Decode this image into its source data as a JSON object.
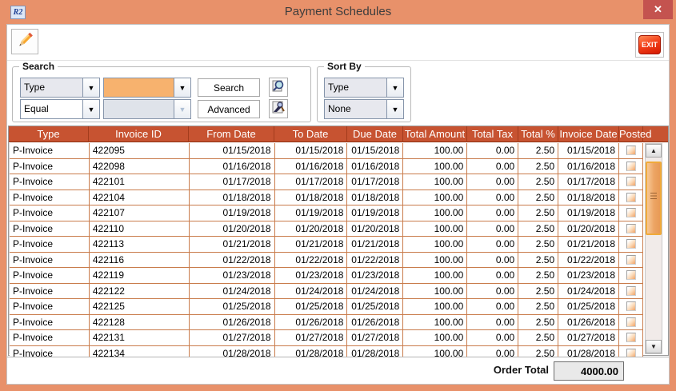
{
  "window": {
    "title": "Payment Schedules",
    "app_icon": "R2"
  },
  "icons": {
    "close": "✕",
    "dropdown": "▼",
    "scroll_up": "▲",
    "scroll_down": "▼"
  },
  "toolbar": {
    "exit_label": "EXIT"
  },
  "search": {
    "group_label": "Search",
    "field_selector": "Type",
    "operator_selector": "Equal",
    "value_input": "",
    "value2_input": "",
    "search_button": "Search",
    "advanced_button": "Advanced"
  },
  "sort": {
    "group_label": "Sort By",
    "primary": "Type",
    "secondary": "None"
  },
  "table": {
    "columns": [
      {
        "key": "type",
        "label": "Type"
      },
      {
        "key": "invoice_id",
        "label": "Invoice ID"
      },
      {
        "key": "from_date",
        "label": "From Date"
      },
      {
        "key": "to_date",
        "label": "To Date"
      },
      {
        "key": "due_date",
        "label": "Due Date"
      },
      {
        "key": "total_amount",
        "label": "Total Amount"
      },
      {
        "key": "total_tax",
        "label": "Total Tax"
      },
      {
        "key": "total_pct",
        "label": "Total %"
      },
      {
        "key": "invoice_date",
        "label": "Invoice Date"
      },
      {
        "key": "posted",
        "label": "Posted"
      }
    ],
    "rows": [
      {
        "type": "P-Invoice",
        "invoice_id": "422095",
        "from_date": "01/15/2018",
        "to_date": "01/15/2018",
        "due_date": "01/15/2018",
        "total_amount": "100.00",
        "total_tax": "0.00",
        "total_pct": "2.50",
        "invoice_date": "01/15/2018",
        "posted": false
      },
      {
        "type": "P-Invoice",
        "invoice_id": "422098",
        "from_date": "01/16/2018",
        "to_date": "01/16/2018",
        "due_date": "01/16/2018",
        "total_amount": "100.00",
        "total_tax": "0.00",
        "total_pct": "2.50",
        "invoice_date": "01/16/2018",
        "posted": false
      },
      {
        "type": "P-Invoice",
        "invoice_id": "422101",
        "from_date": "01/17/2018",
        "to_date": "01/17/2018",
        "due_date": "01/17/2018",
        "total_amount": "100.00",
        "total_tax": "0.00",
        "total_pct": "2.50",
        "invoice_date": "01/17/2018",
        "posted": false
      },
      {
        "type": "P-Invoice",
        "invoice_id": "422104",
        "from_date": "01/18/2018",
        "to_date": "01/18/2018",
        "due_date": "01/18/2018",
        "total_amount": "100.00",
        "total_tax": "0.00",
        "total_pct": "2.50",
        "invoice_date": "01/18/2018",
        "posted": false
      },
      {
        "type": "P-Invoice",
        "invoice_id": "422107",
        "from_date": "01/19/2018",
        "to_date": "01/19/2018",
        "due_date": "01/19/2018",
        "total_amount": "100.00",
        "total_tax": "0.00",
        "total_pct": "2.50",
        "invoice_date": "01/19/2018",
        "posted": false
      },
      {
        "type": "P-Invoice",
        "invoice_id": "422110",
        "from_date": "01/20/2018",
        "to_date": "01/20/2018",
        "due_date": "01/20/2018",
        "total_amount": "100.00",
        "total_tax": "0.00",
        "total_pct": "2.50",
        "invoice_date": "01/20/2018",
        "posted": false
      },
      {
        "type": "P-Invoice",
        "invoice_id": "422113",
        "from_date": "01/21/2018",
        "to_date": "01/21/2018",
        "due_date": "01/21/2018",
        "total_amount": "100.00",
        "total_tax": "0.00",
        "total_pct": "2.50",
        "invoice_date": "01/21/2018",
        "posted": false
      },
      {
        "type": "P-Invoice",
        "invoice_id": "422116",
        "from_date": "01/22/2018",
        "to_date": "01/22/2018",
        "due_date": "01/22/2018",
        "total_amount": "100.00",
        "total_tax": "0.00",
        "total_pct": "2.50",
        "invoice_date": "01/22/2018",
        "posted": false
      },
      {
        "type": "P-Invoice",
        "invoice_id": "422119",
        "from_date": "01/23/2018",
        "to_date": "01/23/2018",
        "due_date": "01/23/2018",
        "total_amount": "100.00",
        "total_tax": "0.00",
        "total_pct": "2.50",
        "invoice_date": "01/23/2018",
        "posted": false
      },
      {
        "type": "P-Invoice",
        "invoice_id": "422122",
        "from_date": "01/24/2018",
        "to_date": "01/24/2018",
        "due_date": "01/24/2018",
        "total_amount": "100.00",
        "total_tax": "0.00",
        "total_pct": "2.50",
        "invoice_date": "01/24/2018",
        "posted": false
      },
      {
        "type": "P-Invoice",
        "invoice_id": "422125",
        "from_date": "01/25/2018",
        "to_date": "01/25/2018",
        "due_date": "01/25/2018",
        "total_amount": "100.00",
        "total_tax": "0.00",
        "total_pct": "2.50",
        "invoice_date": "01/25/2018",
        "posted": false
      },
      {
        "type": "P-Invoice",
        "invoice_id": "422128",
        "from_date": "01/26/2018",
        "to_date": "01/26/2018",
        "due_date": "01/26/2018",
        "total_amount": "100.00",
        "total_tax": "0.00",
        "total_pct": "2.50",
        "invoice_date": "01/26/2018",
        "posted": false
      },
      {
        "type": "P-Invoice",
        "invoice_id": "422131",
        "from_date": "01/27/2018",
        "to_date": "01/27/2018",
        "due_date": "01/27/2018",
        "total_amount": "100.00",
        "total_tax": "0.00",
        "total_pct": "2.50",
        "invoice_date": "01/27/2018",
        "posted": false
      },
      {
        "type": "P-Invoice",
        "invoice_id": "422134",
        "from_date": "01/28/2018",
        "to_date": "01/28/2018",
        "due_date": "01/28/2018",
        "total_amount": "100.00",
        "total_tax": "0.00",
        "total_pct": "2.50",
        "invoice_date": "01/28/2018",
        "posted": false
      }
    ]
  },
  "footer": {
    "order_total_label": "Order Total",
    "order_total_value": "4000.00"
  },
  "colors": {
    "titlebar": "#e8916a",
    "close_button": "#c4534f",
    "header": "#c75331",
    "grid_line": "#c97c4c",
    "search_value_bg": "#f7b26e",
    "scroll_thumb_border": "#f0aa3a",
    "exit_red": "#d41900"
  }
}
